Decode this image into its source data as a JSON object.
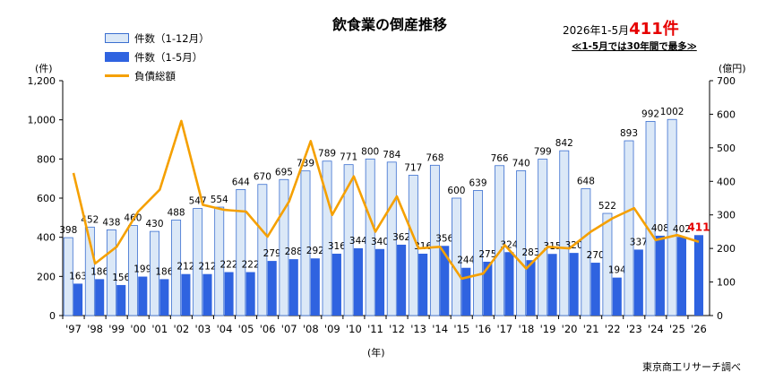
{
  "title": "飲食業の倒産推移",
  "headline_prefix": "2026年1-5月",
  "headline_value": "411件",
  "subhead": "≪1-5月では30年間で最多≫",
  "unit_left": "(件)",
  "unit_right": "(億円)",
  "x_unit": "(年)",
  "source": "東京商工リサーチ調べ",
  "colors": {
    "full_year_fill": "#dbe8f7",
    "full_year_stroke": "#3b6fd0",
    "jan_may": "#2f63e0",
    "debt_line": "#f5a000",
    "highlight": "#e60000"
  },
  "chart_data": {
    "type": "bar",
    "categories": [
      "'97",
      "'98",
      "'99",
      "'00",
      "'01",
      "'02",
      "'03",
      "'04",
      "'05",
      "'06",
      "'07",
      "'08",
      "'09",
      "'10",
      "'11",
      "'12",
      "'13",
      "'14",
      "'15",
      "'16",
      "'17",
      "'18",
      "'19",
      "'20",
      "'21",
      "'22",
      "'23",
      "'24",
      "'25",
      "'26"
    ],
    "series": [
      {
        "name": "件数（1-12月）",
        "type": "bar",
        "axis": "left",
        "values": [
          398,
          452,
          438,
          460,
          430,
          488,
          547,
          554,
          644,
          670,
          695,
          739,
          789,
          771,
          800,
          784,
          717,
          768,
          600,
          639,
          766,
          740,
          799,
          842,
          648,
          522,
          893,
          992,
          1002,
          null
        ]
      },
      {
        "name": "件数（1-5月）",
        "type": "bar",
        "axis": "left",
        "values": [
          163,
          186,
          156,
          199,
          186,
          212,
          212,
          222,
          222,
          279,
          288,
          292,
          316,
          344,
          340,
          362,
          316,
          356,
          244,
          275,
          324,
          283,
          315,
          320,
          270,
          194,
          337,
          408,
          402,
          411
        ]
      },
      {
        "name": "負債総額",
        "type": "line",
        "axis": "right",
        "values": [
          425,
          155,
          205,
          310,
          375,
          580,
          330,
          315,
          310,
          235,
          340,
          520,
          300,
          415,
          250,
          355,
          200,
          205,
          110,
          125,
          210,
          140,
          205,
          200,
          250,
          290,
          320,
          225,
          240,
          220
        ]
      }
    ],
    "left_axis": {
      "range": [
        0,
        1200
      ],
      "ticks": [
        "0",
        "200",
        "400",
        "600",
        "800",
        "1,000",
        "1,200"
      ]
    },
    "right_axis": {
      "range": [
        0,
        700
      ],
      "ticks": [
        "0",
        "100",
        "200",
        "300",
        "400",
        "500",
        "600",
        "700"
      ]
    },
    "grid": false,
    "legend_position": "top-left",
    "highlight_last_label": true
  }
}
